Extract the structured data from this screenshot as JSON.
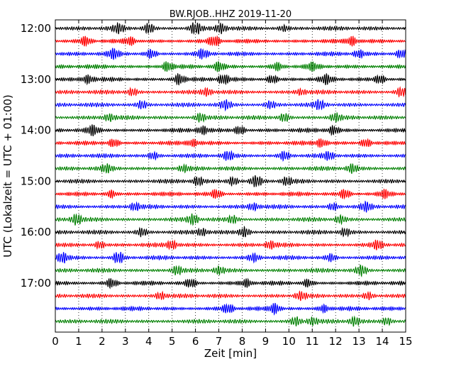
{
  "chart_data": {
    "type": "line",
    "title": "BW.RJOB..HHZ 2019-11-20",
    "xlabel": "Zeit  [min]",
    "ylabel": "UTC (Lokalzeit = UTC + 01:00)",
    "xlim": [
      0,
      15
    ],
    "x_ticks": [
      "0",
      "1",
      "2",
      "3",
      "4",
      "5",
      "6",
      "7",
      "8",
      "9",
      "10",
      "11",
      "12",
      "13",
      "14",
      "15"
    ],
    "y_ticks": [
      "12:00",
      "13:00",
      "14:00",
      "15:00",
      "16:00",
      "17:00"
    ],
    "grid": "vertical dotted lines at each minute",
    "row_interval_minutes": 15,
    "row_start_times": [
      "12:00",
      "12:15",
      "12:30",
      "12:45",
      "13:00",
      "13:15",
      "13:30",
      "13:45",
      "14:00",
      "14:15",
      "14:30",
      "14:45",
      "15:00",
      "15:15",
      "15:30",
      "15:45",
      "16:00",
      "16:15",
      "16:30",
      "16:45",
      "17:00",
      "17:15",
      "17:30",
      "17:45"
    ],
    "trace_colors": [
      "#000000",
      "#ff0000",
      "#0000ff",
      "#008000"
    ],
    "bursts": [
      [
        [
          2.7,
          0.6
        ],
        [
          4.0,
          0.7
        ],
        [
          6.0,
          1.0
        ],
        [
          7.1,
          0.7
        ],
        [
          9.8,
          0.4
        ]
      ],
      [
        [
          1.3,
          0.6
        ],
        [
          3.2,
          0.5
        ],
        [
          6.8,
          0.7
        ],
        [
          12.7,
          0.6
        ]
      ],
      [
        [
          2.5,
          0.7
        ],
        [
          4.1,
          0.6
        ],
        [
          6.3,
          0.6
        ],
        [
          13.0,
          0.5
        ],
        [
          14.8,
          0.6
        ]
      ],
      [
        [
          4.8,
          0.7
        ],
        [
          7.0,
          0.6
        ],
        [
          9.5,
          0.5
        ],
        [
          11.0,
          0.5
        ]
      ],
      [
        [
          1.4,
          0.6
        ],
        [
          5.3,
          0.8
        ],
        [
          7.2,
          0.7
        ],
        [
          9.3,
          0.6
        ],
        [
          11.6,
          0.6
        ],
        [
          13.9,
          0.6
        ]
      ],
      [
        [
          3.3,
          0.5
        ],
        [
          6.5,
          0.5
        ],
        [
          10.5,
          0.4
        ],
        [
          14.8,
          0.6
        ]
      ],
      [
        [
          3.7,
          0.6
        ],
        [
          7.3,
          0.6
        ],
        [
          9.2,
          0.5
        ],
        [
          11.3,
          0.6
        ]
      ],
      [
        [
          2.3,
          0.5
        ],
        [
          6.2,
          0.6
        ],
        [
          9.8,
          0.6
        ],
        [
          12.0,
          0.5
        ]
      ],
      [
        [
          1.6,
          0.7
        ],
        [
          6.3,
          0.6
        ],
        [
          7.9,
          0.6
        ],
        [
          11.9,
          0.6
        ]
      ],
      [
        [
          2.5,
          0.6
        ],
        [
          5.9,
          0.5
        ],
        [
          11.4,
          0.6
        ],
        [
          13.3,
          0.6
        ]
      ],
      [
        [
          4.2,
          0.5
        ],
        [
          7.4,
          0.6
        ],
        [
          9.8,
          0.6
        ],
        [
          11.7,
          0.5
        ]
      ],
      [
        [
          2.2,
          0.5
        ],
        [
          5.5,
          0.4
        ],
        [
          12.7,
          0.6
        ]
      ],
      [
        [
          6.1,
          0.6
        ],
        [
          7.6,
          0.6
        ],
        [
          8.6,
          0.9
        ],
        [
          9.9,
          0.5
        ]
      ],
      [
        [
          2.4,
          0.5
        ],
        [
          6.9,
          0.6
        ],
        [
          12.4,
          0.7
        ],
        [
          14.1,
          0.5
        ]
      ],
      [
        [
          3.4,
          0.5
        ],
        [
          8.5,
          0.5
        ],
        [
          11.9,
          0.5
        ],
        [
          13.3,
          0.6
        ]
      ],
      [
        [
          0.9,
          0.8
        ],
        [
          5.9,
          0.7
        ],
        [
          7.6,
          0.5
        ],
        [
          12.2,
          0.5
        ]
      ],
      [
        [
          3.7,
          0.6
        ],
        [
          6.3,
          0.5
        ],
        [
          8.1,
          0.7
        ],
        [
          12.4,
          0.5
        ]
      ],
      [
        [
          1.9,
          0.5
        ],
        [
          5.0,
          0.6
        ],
        [
          9.2,
          0.5
        ],
        [
          13.8,
          0.6
        ]
      ],
      [
        [
          0.3,
          0.7
        ],
        [
          2.7,
          0.9
        ],
        [
          8.5,
          0.5
        ],
        [
          11.8,
          0.5
        ]
      ],
      [
        [
          5.2,
          0.6
        ],
        [
          7.0,
          0.5
        ],
        [
          13.1,
          0.7
        ]
      ],
      [
        [
          2.4,
          0.6
        ],
        [
          5.8,
          0.6
        ],
        [
          8.2,
          0.5
        ],
        [
          10.8,
          0.5
        ]
      ],
      [
        [
          4.5,
          0.5
        ],
        [
          10.5,
          0.5
        ],
        [
          13.4,
          0.5
        ]
      ],
      [
        [
          7.4,
          0.6
        ],
        [
          9.4,
          0.7
        ],
        [
          11.5,
          0.5
        ]
      ],
      [
        [
          10.3,
          0.6
        ],
        [
          11.0,
          0.5
        ],
        [
          12.8,
          0.6
        ],
        [
          14.2,
          0.5
        ]
      ]
    ]
  }
}
